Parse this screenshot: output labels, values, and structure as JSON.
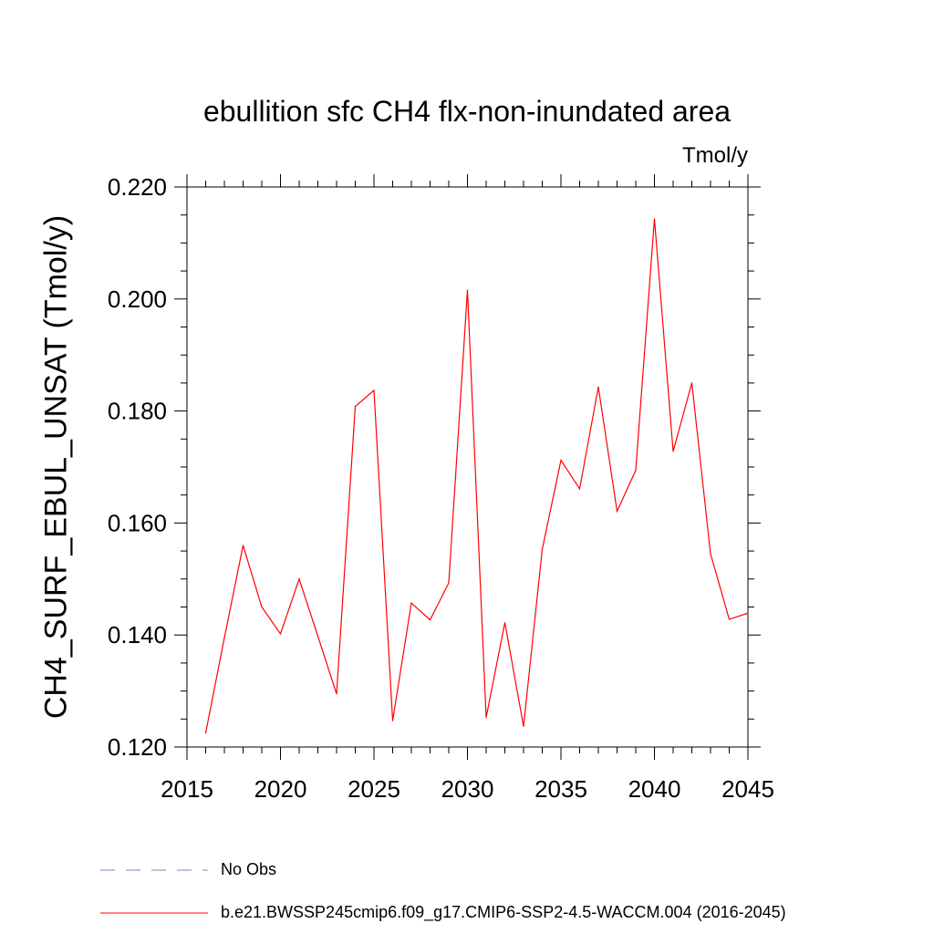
{
  "chart_data": {
    "type": "line",
    "title": "ebullition sfc CH4 flx-non-inundated area",
    "units_label": "Tmol/y",
    "ylabel": "CH4_SURF_EBUL_UNSAT  (Tmol/y)",
    "xlabel": "",
    "xlim": [
      2015,
      2045
    ],
    "ylim": [
      0.12,
      0.22
    ],
    "xticks": [
      2015,
      2020,
      2025,
      2030,
      2035,
      2040,
      2045
    ],
    "yticks": [
      0.12,
      0.14,
      0.16,
      0.18,
      0.2,
      0.22
    ],
    "ytick_labels": [
      "0.120",
      "0.140",
      "0.160",
      "0.180",
      "0.200",
      "0.220"
    ],
    "grid": false,
    "series": [
      {
        "name": "b.e21.BWSSP245cmip6.f09_g17.CMIP6-SSP2-4.5-WACCM.004 (2016-2045)",
        "color": "#ff0000",
        "x": [
          2016,
          2017,
          2018,
          2019,
          2020,
          2021,
          2022,
          2023,
          2024,
          2025,
          2026,
          2027,
          2028,
          2029,
          2030,
          2031,
          2032,
          2033,
          2034,
          2035,
          2036,
          2037,
          2038,
          2039,
          2040,
          2041,
          2042,
          2043,
          2044,
          2045
        ],
        "values": [
          0.1225,
          0.1395,
          0.156,
          0.145,
          0.1402,
          0.15,
          0.1398,
          0.1295,
          0.1808,
          0.1837,
          0.1247,
          0.1457,
          0.1427,
          0.1493,
          0.2016,
          0.1253,
          0.1422,
          0.1237,
          0.1553,
          0.1712,
          0.1661,
          0.1843,
          0.1621,
          0.1694,
          0.2143,
          0.1728,
          0.185,
          0.1545,
          0.1428,
          0.1439
        ]
      }
    ],
    "legend": [
      {
        "label": "No Obs",
        "style": "dashed",
        "color": "#8080c0"
      },
      {
        "label": "b.e21.BWSSP245cmip6.f09_g17.CMIP6-SSP2-4.5-WACCM.004 (2016-2045)",
        "style": "solid",
        "color": "#ff0000"
      }
    ],
    "legend_position": "bottom-left"
  }
}
